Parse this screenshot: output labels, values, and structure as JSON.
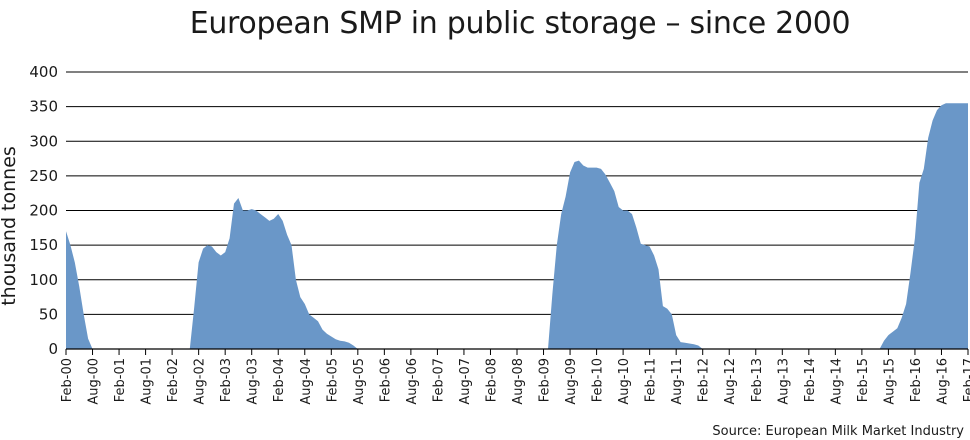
{
  "chart_data": {
    "type": "area",
    "title": "European SMP in public storage – since 2000",
    "ylabel": "thousand tonnes",
    "xlabel": "",
    "ylim": [
      0,
      400
    ],
    "yticks": [
      0,
      50,
      100,
      150,
      200,
      250,
      300,
      350,
      400
    ],
    "grid": true,
    "fill_color": "#6a97c8",
    "grid_color": "#000000",
    "x_start": "Feb-00",
    "xticks": [
      "Feb-00",
      "Aug-00",
      "Feb-01",
      "Aug-01",
      "Feb-02",
      "Aug-02",
      "Feb-03",
      "Aug-03",
      "Feb-04",
      "Aug-04",
      "Feb-05",
      "Aug-05",
      "Feb-06",
      "Aug-06",
      "Feb-07",
      "Aug-07",
      "Feb-08",
      "Aug-08",
      "Feb-09",
      "Aug-09",
      "Feb-10",
      "Aug-10",
      "Feb-11",
      "Aug-11",
      "Feb-12",
      "Aug-12",
      "Feb-13",
      "Aug-13",
      "Feb-14",
      "Aug-14",
      "Feb-15",
      "Aug-15",
      "Feb-16",
      "Aug-16",
      "Feb-17"
    ],
    "series": [
      {
        "values": [
          {
            "x": "Feb-00",
            "y": 170
          },
          {
            "x": "Mar-00",
            "y": 150
          },
          {
            "x": "Apr-00",
            "y": 125
          },
          {
            "x": "May-00",
            "y": 90
          },
          {
            "x": "Jun-00",
            "y": 50
          },
          {
            "x": "Jul-00",
            "y": 15
          },
          {
            "x": "Aug-00",
            "y": 0
          },
          {
            "x": "Jun-02",
            "y": 0
          },
          {
            "x": "Jul-02",
            "y": 60
          },
          {
            "x": "Aug-02",
            "y": 125
          },
          {
            "x": "Sep-02",
            "y": 145
          },
          {
            "x": "Oct-02",
            "y": 150
          },
          {
            "x": "Nov-02",
            "y": 148
          },
          {
            "x": "Dec-02",
            "y": 140
          },
          {
            "x": "Jan-03",
            "y": 135
          },
          {
            "x": "Feb-03",
            "y": 140
          },
          {
            "x": "Mar-03",
            "y": 160
          },
          {
            "x": "Apr-03",
            "y": 210
          },
          {
            "x": "May-03",
            "y": 218
          },
          {
            "x": "Jun-03",
            "y": 200
          },
          {
            "x": "Jul-03",
            "y": 200
          },
          {
            "x": "Aug-03",
            "y": 202
          },
          {
            "x": "Sep-03",
            "y": 200
          },
          {
            "x": "Oct-03",
            "y": 195
          },
          {
            "x": "Nov-03",
            "y": 190
          },
          {
            "x": "Dec-03",
            "y": 185
          },
          {
            "x": "Jan-04",
            "y": 188
          },
          {
            "x": "Feb-04",
            "y": 195
          },
          {
            "x": "Mar-04",
            "y": 185
          },
          {
            "x": "Apr-04",
            "y": 165
          },
          {
            "x": "May-04",
            "y": 150
          },
          {
            "x": "Jun-04",
            "y": 100
          },
          {
            "x": "Jul-04",
            "y": 75
          },
          {
            "x": "Aug-04",
            "y": 65
          },
          {
            "x": "Sep-04",
            "y": 50
          },
          {
            "x": "Oct-04",
            "y": 45
          },
          {
            "x": "Nov-04",
            "y": 40
          },
          {
            "x": "Dec-04",
            "y": 28
          },
          {
            "x": "Jan-05",
            "y": 22
          },
          {
            "x": "Feb-05",
            "y": 18
          },
          {
            "x": "Mar-05",
            "y": 14
          },
          {
            "x": "Apr-05",
            "y": 12
          },
          {
            "x": "May-05",
            "y": 11
          },
          {
            "x": "Jun-05",
            "y": 9
          },
          {
            "x": "Jul-05",
            "y": 5
          },
          {
            "x": "Aug-05",
            "y": 0
          },
          {
            "x": "Mar-09",
            "y": 0
          },
          {
            "x": "Apr-09",
            "y": 80
          },
          {
            "x": "May-09",
            "y": 150
          },
          {
            "x": "Jun-09",
            "y": 195
          },
          {
            "x": "Jul-09",
            "y": 220
          },
          {
            "x": "Aug-09",
            "y": 255
          },
          {
            "x": "Sep-09",
            "y": 270
          },
          {
            "x": "Oct-09",
            "y": 272
          },
          {
            "x": "Nov-09",
            "y": 265
          },
          {
            "x": "Dec-09",
            "y": 262
          },
          {
            "x": "Jan-10",
            "y": 262
          },
          {
            "x": "Feb-10",
            "y": 262
          },
          {
            "x": "Mar-10",
            "y": 260
          },
          {
            "x": "Apr-10",
            "y": 252
          },
          {
            "x": "May-10",
            "y": 240
          },
          {
            "x": "Jun-10",
            "y": 228
          },
          {
            "x": "Jul-10",
            "y": 205
          },
          {
            "x": "Aug-10",
            "y": 200
          },
          {
            "x": "Sep-10",
            "y": 200
          },
          {
            "x": "Oct-10",
            "y": 195
          },
          {
            "x": "Nov-10",
            "y": 175
          },
          {
            "x": "Dec-10",
            "y": 152
          },
          {
            "x": "Jan-11",
            "y": 150
          },
          {
            "x": "Feb-11",
            "y": 148
          },
          {
            "x": "Mar-11",
            "y": 135
          },
          {
            "x": "Apr-11",
            "y": 115
          },
          {
            "x": "May-11",
            "y": 62
          },
          {
            "x": "Jun-11",
            "y": 58
          },
          {
            "x": "Jul-11",
            "y": 50
          },
          {
            "x": "Aug-11",
            "y": 20
          },
          {
            "x": "Sep-11",
            "y": 10
          },
          {
            "x": "Oct-11",
            "y": 9
          },
          {
            "x": "Nov-11",
            "y": 8
          },
          {
            "x": "Dec-11",
            "y": 7
          },
          {
            "x": "Jan-12",
            "y": 5
          },
          {
            "x": "Feb-12",
            "y": 0
          },
          {
            "x": "Jun-15",
            "y": 0
          },
          {
            "x": "Jul-15",
            "y": 12
          },
          {
            "x": "Aug-15",
            "y": 20
          },
          {
            "x": "Sep-15",
            "y": 25
          },
          {
            "x": "Oct-15",
            "y": 30
          },
          {
            "x": "Nov-15",
            "y": 45
          },
          {
            "x": "Dec-15",
            "y": 65
          },
          {
            "x": "Jan-16",
            "y": 110
          },
          {
            "x": "Feb-16",
            "y": 160
          },
          {
            "x": "Mar-16",
            "y": 240
          },
          {
            "x": "Apr-16",
            "y": 260
          },
          {
            "x": "May-16",
            "y": 305
          },
          {
            "x": "Jun-16",
            "y": 330
          },
          {
            "x": "Jul-16",
            "y": 345
          },
          {
            "x": "Aug-16",
            "y": 352
          },
          {
            "x": "Sep-16",
            "y": 355
          },
          {
            "x": "Oct-16",
            "y": 355
          },
          {
            "x": "Nov-16",
            "y": 355
          },
          {
            "x": "Dec-16",
            "y": 355
          },
          {
            "x": "Jan-17",
            "y": 355
          },
          {
            "x": "Feb-17",
            "y": 355
          }
        ]
      }
    ]
  },
  "source": "Source: European Milk Market Industry"
}
